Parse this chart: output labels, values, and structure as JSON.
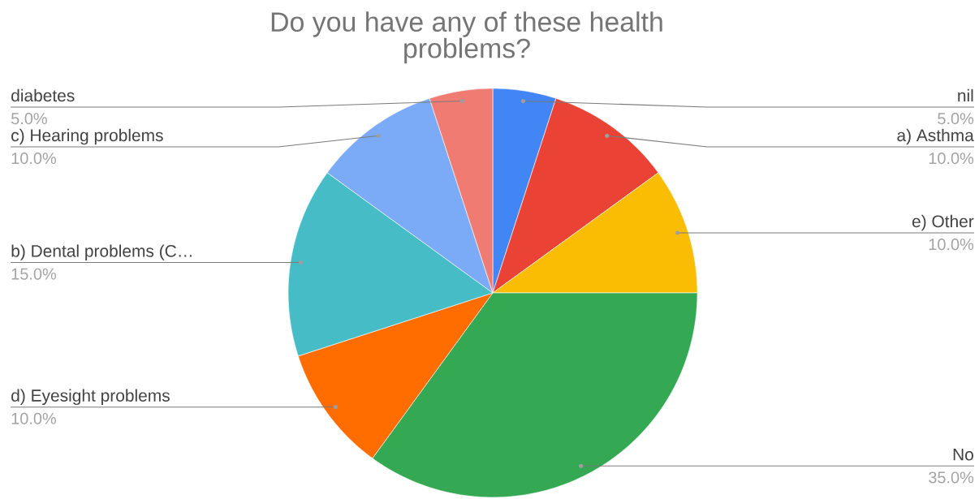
{
  "chart_data": {
    "type": "pie",
    "title": "Do you have any of these health problems?",
    "categories": [
      "nil",
      "a) Asthma",
      "e) Other",
      "No",
      "d) Eyesight problems",
      "b) Dental problems (C…",
      "c) Hearing problems",
      "diabetes"
    ],
    "values": [
      5,
      10,
      10,
      35,
      10,
      15,
      10,
      5
    ],
    "colors": [
      "#4285f4",
      "#ea4335",
      "#fbbc04",
      "#34a853",
      "#ff6d01",
      "#46bdc6",
      "#7baaf7",
      "#f07b72"
    ],
    "value_labels": [
      "5.0%",
      "10.0%",
      "10.0%",
      "35.0%",
      "10.0%",
      "15.0%",
      "10.0%",
      "5.0%"
    ]
  }
}
